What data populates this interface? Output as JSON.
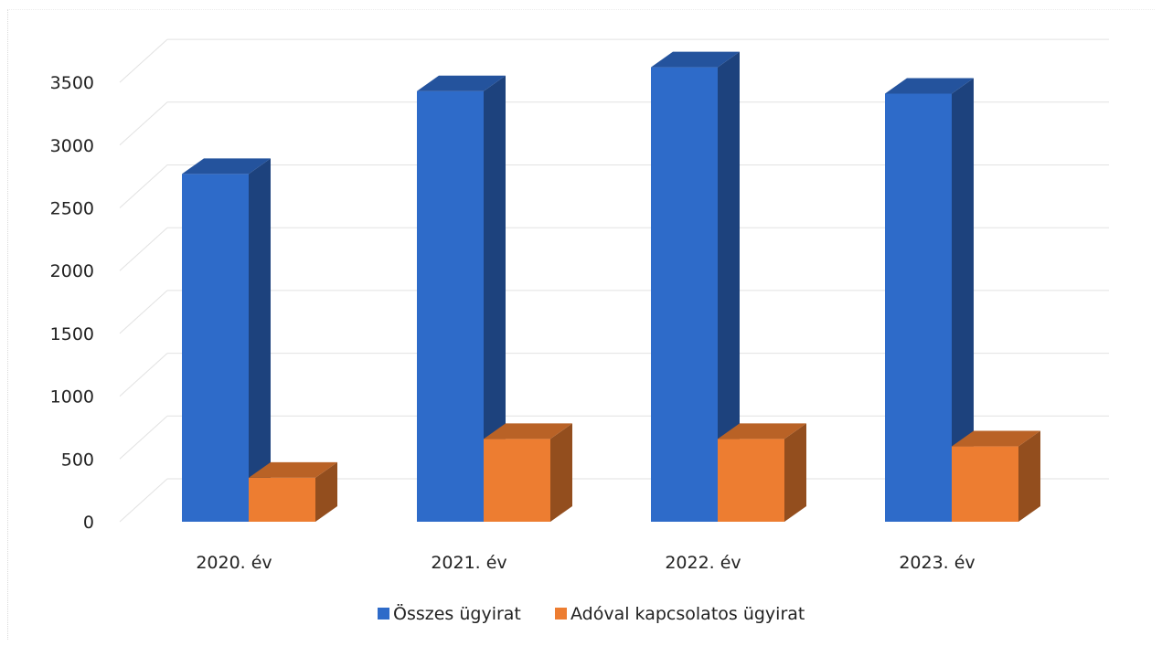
{
  "chart_data": {
    "type": "bar",
    "categories": [
      "2020. év",
      "2021. év",
      "2022. év",
      "2023. év"
    ],
    "series": [
      {
        "name": "Összes ügyirat",
        "values": [
          2770,
          3430,
          3620,
          3410
        ],
        "color": "#2e6bc9"
      },
      {
        "name": "Adóval kapcsolatos ügyirat",
        "values": [
          350,
          660,
          660,
          600
        ],
        "color": "#ed7d31"
      }
    ],
    "yticks": [
      0,
      500,
      1000,
      1500,
      2000,
      2500,
      3000,
      3500
    ],
    "ylim": [
      0,
      3800
    ],
    "grid": true,
    "legend": "bottom",
    "title": "",
    "xlabel": "",
    "ylabel": ""
  }
}
